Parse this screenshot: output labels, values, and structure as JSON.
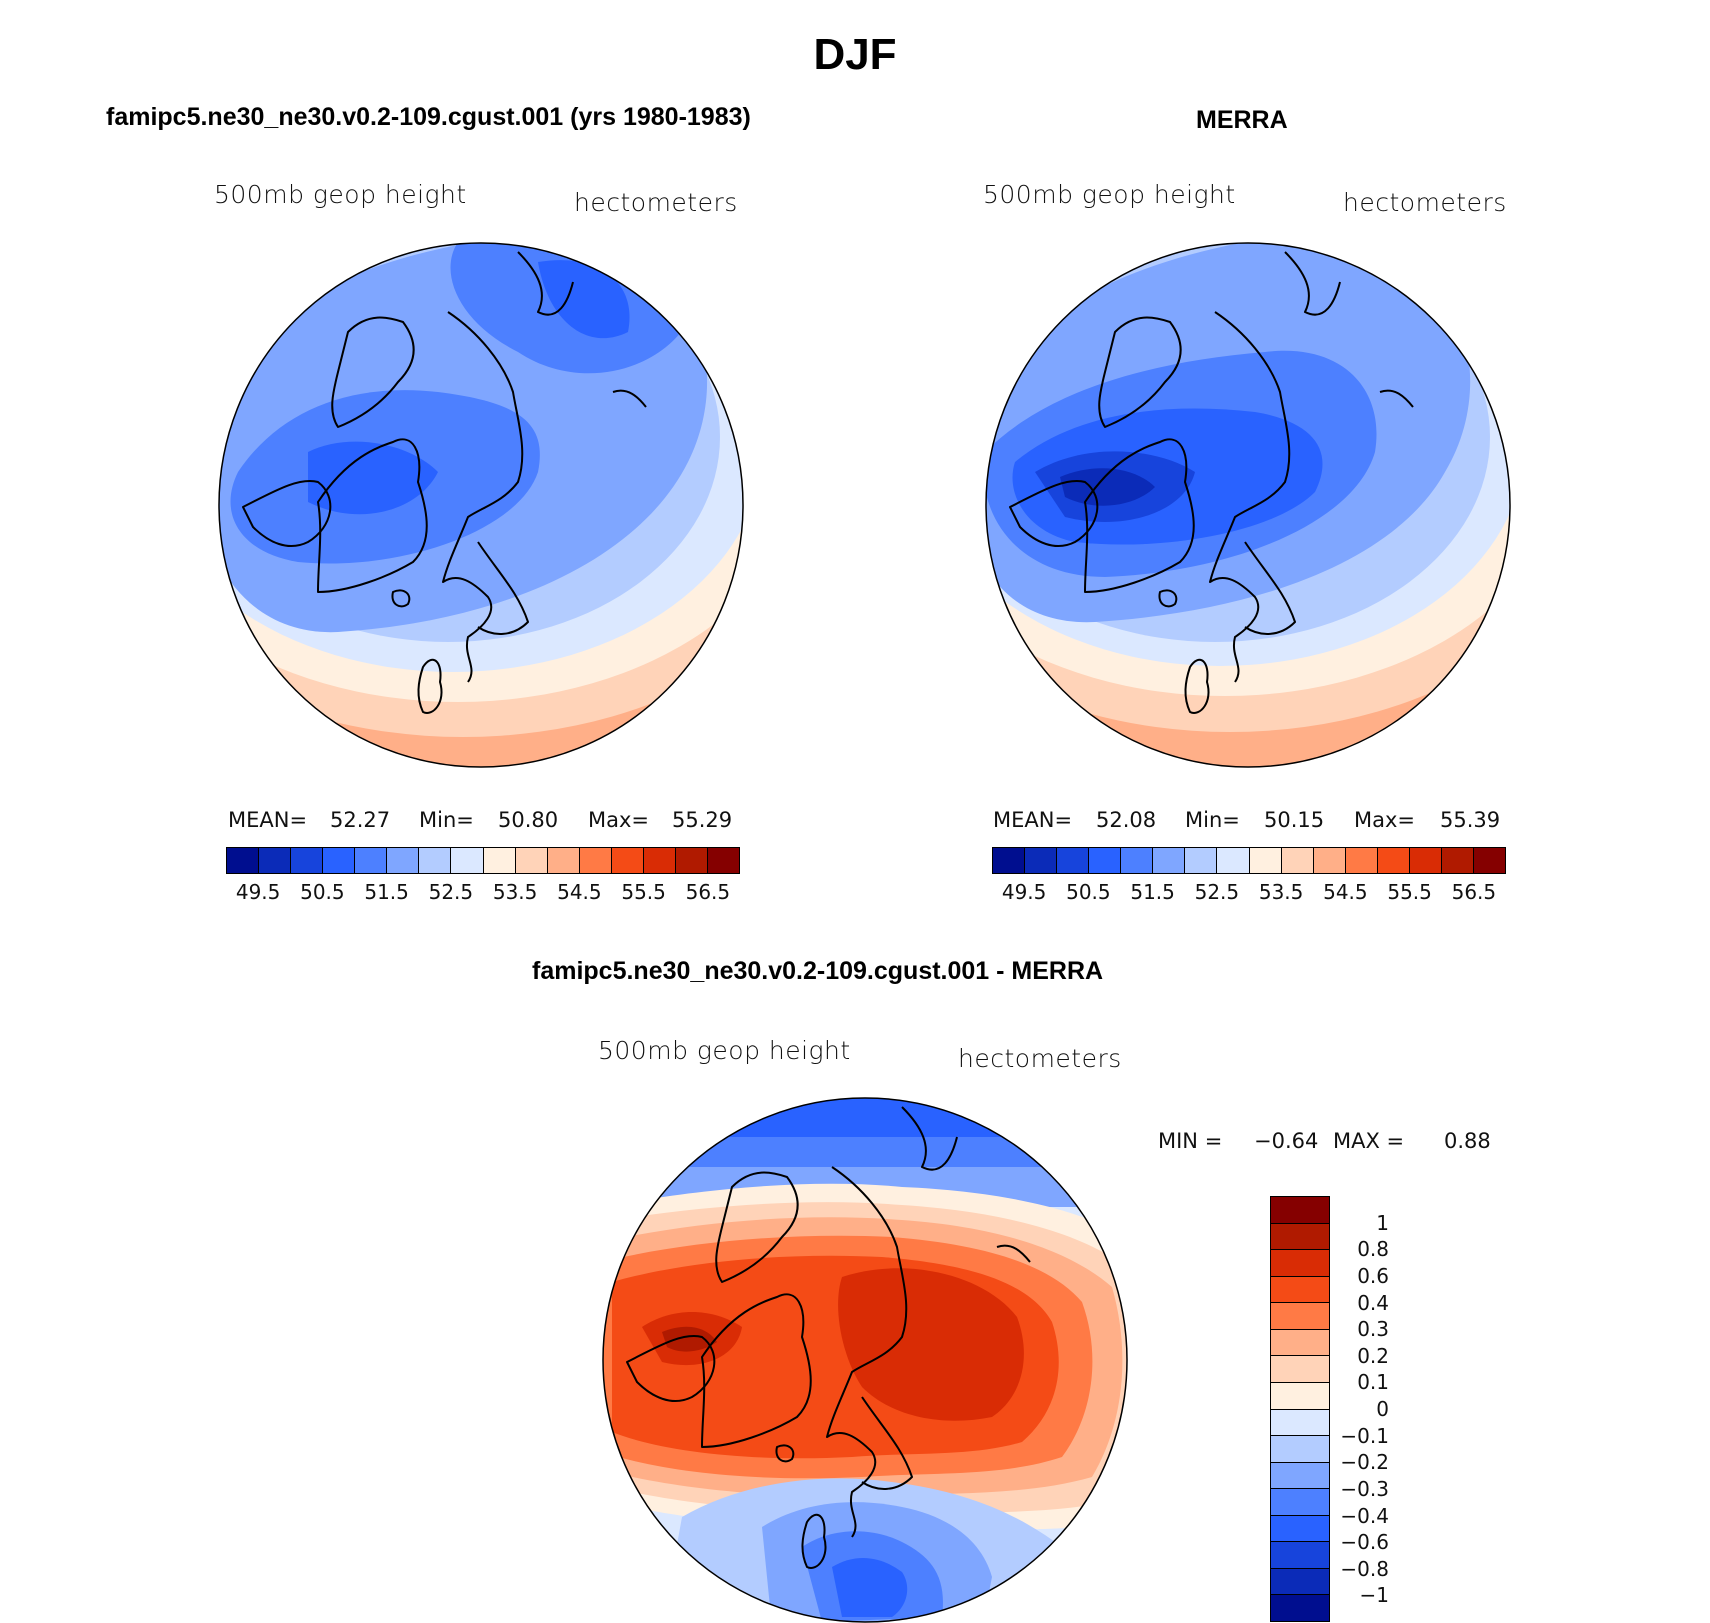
{
  "title": "DJF",
  "chart_data": [
    {
      "type": "heatmap",
      "panel_title": "famipc5.ne30_ne30.v0.2-109.cgust.001 (yrs 1980-1983)",
      "left_label": "500mb geop height",
      "right_label": "hectometers",
      "stats": {
        "mean_label": "MEAN=",
        "mean": "52.27",
        "min_label": "Min=",
        "min": "50.80",
        "max_label": "Max=",
        "max": "55.29"
      },
      "legend_ticks": [
        "49.5",
        "50.5",
        "51.5",
        "52.5",
        "53.5",
        "54.5",
        "55.5",
        "56.5"
      ],
      "contour_levels": [
        49.5,
        50,
        50.5,
        51,
        51.5,
        52,
        52.5,
        53,
        53.5,
        54,
        54.5,
        55,
        55.5,
        56,
        56.5
      ],
      "colors": [
        "#000e8f",
        "#0b2bb8",
        "#1744dc",
        "#2962ff",
        "#4d80ff",
        "#7fa6ff",
        "#b3ccff",
        "#dbe8ff",
        "#fff0e0",
        "#ffd3b8",
        "#ffaf88",
        "#ff7a45",
        "#f44b16",
        "#d92c05",
        "#b01a00",
        "#850000"
      ]
    },
    {
      "type": "heatmap",
      "panel_title": "MERRA",
      "left_label": "500mb geop height",
      "right_label": "hectometers",
      "stats": {
        "mean_label": "MEAN=",
        "mean": "52.08",
        "min_label": "Min=",
        "min": "50.15",
        "max_label": "Max=",
        "max": "55.39"
      },
      "legend_ticks": [
        "49.5",
        "50.5",
        "51.5",
        "52.5",
        "53.5",
        "54.5",
        "55.5",
        "56.5"
      ],
      "contour_levels": [
        49.5,
        50,
        50.5,
        51,
        51.5,
        52,
        52.5,
        53,
        53.5,
        54,
        54.5,
        55,
        55.5,
        56,
        56.5
      ],
      "colors": [
        "#000e8f",
        "#0b2bb8",
        "#1744dc",
        "#2962ff",
        "#4d80ff",
        "#7fa6ff",
        "#b3ccff",
        "#dbe8ff",
        "#fff0e0",
        "#ffd3b8",
        "#ffaf88",
        "#ff7a45",
        "#f44b16",
        "#d92c05",
        "#b01a00",
        "#850000"
      ]
    },
    {
      "type": "heatmap",
      "panel_title": "famipc5.ne30_ne30.v0.2-109.cgust.001 - MERRA",
      "left_label": "500mb geop height",
      "right_label": "hectometers",
      "stats": {
        "min_label": "MIN =",
        "min": "−0.64",
        "max_label": "MAX =",
        "max": "0.88"
      },
      "legend_ticks": [
        "1",
        "0.8",
        "0.6",
        "0.4",
        "0.3",
        "0.2",
        "0.1",
        "0",
        "−0.1",
        "−0.2",
        "−0.3",
        "−0.4",
        "−0.6",
        "−0.8",
        "−1"
      ],
      "contour_levels": [
        1,
        0.8,
        0.6,
        0.4,
        0.3,
        0.2,
        0.1,
        0,
        -0.1,
        -0.2,
        -0.3,
        -0.4,
        -0.6,
        -0.8,
        -1
      ],
      "colors": [
        "#850000",
        "#b01a00",
        "#d92c05",
        "#f44b16",
        "#ff7a45",
        "#ffaf88",
        "#ffd3b8",
        "#fff0e0",
        "#dbe8ff",
        "#b3ccff",
        "#7fa6ff",
        "#4d80ff",
        "#2962ff",
        "#1744dc",
        "#0b2bb8",
        "#000e8f"
      ]
    }
  ]
}
